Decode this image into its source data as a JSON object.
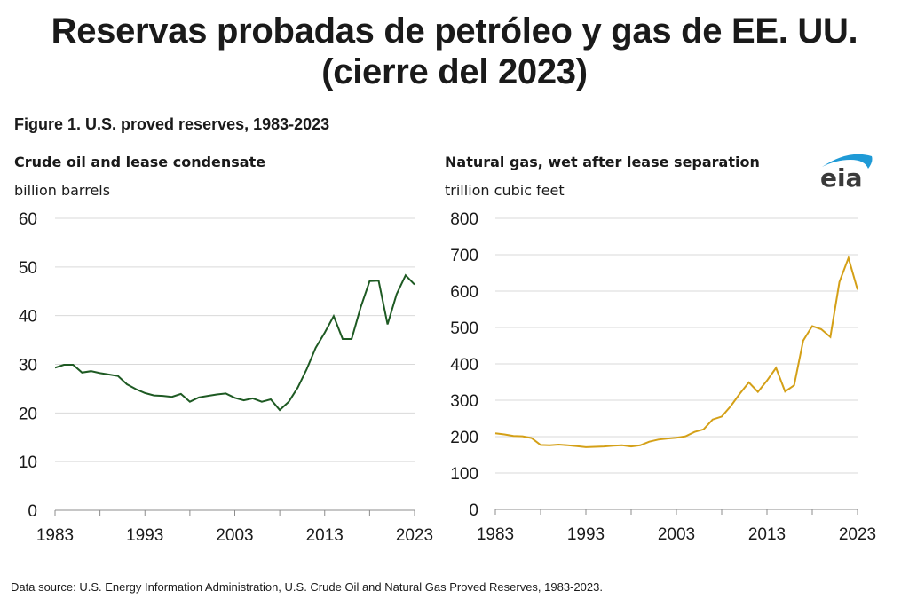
{
  "header": {
    "title_line1": "Reservas probadas de petróleo y gas de EE. UU.",
    "title_line2": "(cierre del 2023)",
    "figure_title": "Figure 1. U.S. proved reserves, 1983-2023"
  },
  "logo": {
    "text": "eia",
    "arc_color": "#1f9ad6",
    "text_color": "#3a3a3a"
  },
  "footer": {
    "source": "Data source: U.S. Energy Information Administration, U.S. Crude Oil and Natural Gas Proved Reserves, 1983-2023."
  },
  "chart_data": [
    {
      "type": "line",
      "title": "Crude oil and lease condensate",
      "ylabel": "billion barrels",
      "xlabel": "",
      "color": "#1e5a23",
      "xlim": [
        1983,
        2023
      ],
      "ylim": [
        0,
        60
      ],
      "yticks": [
        0,
        10,
        20,
        30,
        40,
        50,
        60
      ],
      "xticks": [
        1983,
        1993,
        2003,
        2013,
        2023
      ],
      "xticks_minor": [
        1988,
        1998,
        2008,
        2018
      ],
      "grid": true,
      "x": [
        1983,
        1984,
        1985,
        1986,
        1987,
        1988,
        1989,
        1990,
        1991,
        1992,
        1993,
        1994,
        1995,
        1996,
        1997,
        1998,
        1999,
        2000,
        2001,
        2002,
        2003,
        2004,
        2005,
        2006,
        2007,
        2008,
        2009,
        2010,
        2011,
        2012,
        2013,
        2014,
        2015,
        2016,
        2017,
        2018,
        2019,
        2020,
        2021,
        2022,
        2023
      ],
      "series": [
        {
          "name": "Crude oil and lease condensate",
          "values": [
            29.3,
            29.9,
            29.9,
            28.3,
            28.6,
            28.2,
            27.9,
            27.6,
            25.9,
            24.9,
            24.1,
            23.6,
            23.5,
            23.3,
            23.9,
            22.3,
            23.2,
            23.5,
            23.8,
            24.0,
            23.1,
            22.6,
            23.0,
            22.3,
            22.8,
            20.6,
            22.3,
            25.2,
            29.0,
            33.4,
            36.5,
            39.9,
            35.2,
            35.2,
            41.7,
            47.1,
            47.2,
            38.2,
            44.4,
            48.3,
            46.4
          ]
        }
      ]
    },
    {
      "type": "line",
      "title": "Natural gas, wet after lease separation",
      "ylabel": "trillion cubic feet",
      "xlabel": "",
      "color": "#d4a017",
      "xlim": [
        1983,
        2023
      ],
      "ylim": [
        0,
        800
      ],
      "yticks": [
        0,
        100,
        200,
        300,
        400,
        500,
        600,
        700,
        800
      ],
      "xticks": [
        1983,
        1993,
        2003,
        2013,
        2023
      ],
      "xticks_minor": [
        1988,
        1998,
        2008,
        2018
      ],
      "grid": true,
      "x": [
        1983,
        1984,
        1985,
        1986,
        1987,
        1988,
        1989,
        1990,
        1991,
        1992,
        1993,
        1994,
        1995,
        1996,
        1997,
        1998,
        1999,
        2000,
        2001,
        2002,
        2003,
        2004,
        2005,
        2006,
        2007,
        2008,
        2009,
        2010,
        2011,
        2012,
        2013,
        2014,
        2015,
        2016,
        2017,
        2018,
        2019,
        2020,
        2021,
        2022,
        2023
      ],
      "series": [
        {
          "name": "Natural gas, wet after lease separation",
          "values": [
            209,
            206,
            202,
            201,
            196,
            177,
            176,
            178,
            176,
            174,
            171,
            172,
            173,
            175,
            176,
            173,
            176,
            186,
            192,
            195,
            197,
            201,
            213,
            220,
            247,
            255,
            284,
            318,
            349,
            323,
            354,
            389,
            324,
            341,
            464,
            504,
            495,
            474,
            625,
            691,
            604
          ]
        }
      ]
    }
  ]
}
